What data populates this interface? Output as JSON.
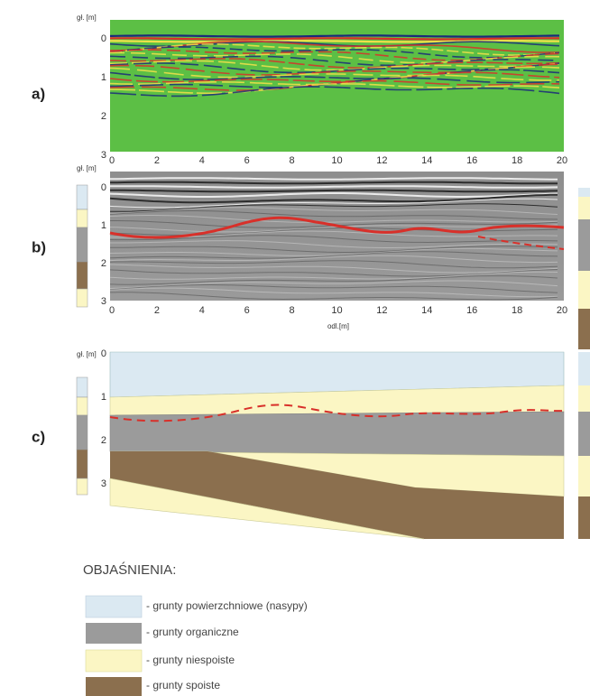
{
  "panels": [
    {
      "label": "a)",
      "y_label": "gł. [m]",
      "yticks": [
        0,
        1,
        2,
        3
      ],
      "xticks": [
        0,
        2,
        4,
        6,
        8,
        10,
        12,
        14,
        16,
        18,
        20
      ]
    },
    {
      "label": "b)",
      "y_label": "gł. [m]",
      "yticks": [
        0,
        1,
        2,
        3
      ],
      "xticks": [
        0,
        2,
        4,
        6,
        8,
        10,
        12,
        14,
        16,
        18,
        20
      ],
      "x_label": "odl.[m]"
    },
    {
      "label": "c)",
      "y_label": "gł. [m]",
      "yticks": [
        0,
        1,
        2,
        3
      ]
    }
  ],
  "legend": {
    "title": "OBJAŚNIENIA:",
    "items": [
      "- grunty powierzchniowe (nasypy)",
      "- grunty organiczne",
      "- grunty niespoiste",
      "- grunty spoiste"
    ]
  }
}
